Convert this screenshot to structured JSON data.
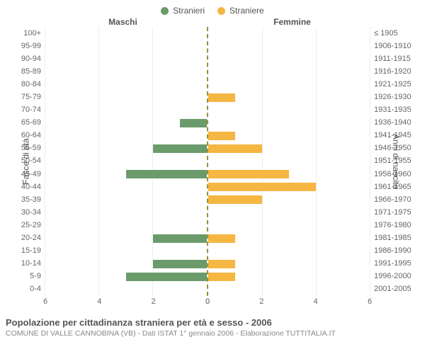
{
  "legend": {
    "male": {
      "label": "Stranieri",
      "color": "#6b9b6b"
    },
    "female": {
      "label": "Straniere",
      "color": "#f5b642"
    }
  },
  "headers": {
    "left": "Maschi",
    "right": "Femmine"
  },
  "y_titles": {
    "left": "Fasce di età",
    "right": "Anni di nascita"
  },
  "x_axis": {
    "max": 6,
    "ticks": [
      0,
      2,
      4,
      6
    ]
  },
  "grid_color": "#eeeeee",
  "center_line_color": "#9a8f3a",
  "bands": [
    {
      "age": "100+",
      "birth": "≤ 1905",
      "m": 0,
      "f": 0
    },
    {
      "age": "95-99",
      "birth": "1906-1910",
      "m": 0,
      "f": 0
    },
    {
      "age": "90-94",
      "birth": "1911-1915",
      "m": 0,
      "f": 0
    },
    {
      "age": "85-89",
      "birth": "1916-1920",
      "m": 0,
      "f": 0
    },
    {
      "age": "80-84",
      "birth": "1921-1925",
      "m": 0,
      "f": 0
    },
    {
      "age": "75-79",
      "birth": "1926-1930",
      "m": 0,
      "f": 1
    },
    {
      "age": "70-74",
      "birth": "1931-1935",
      "m": 0,
      "f": 0
    },
    {
      "age": "65-69",
      "birth": "1936-1940",
      "m": 1,
      "f": 0
    },
    {
      "age": "60-64",
      "birth": "1941-1945",
      "m": 0,
      "f": 1
    },
    {
      "age": "55-59",
      "birth": "1946-1950",
      "m": 2,
      "f": 2
    },
    {
      "age": "50-54",
      "birth": "1951-1955",
      "m": 0,
      "f": 0
    },
    {
      "age": "45-49",
      "birth": "1956-1960",
      "m": 3,
      "f": 3
    },
    {
      "age": "40-44",
      "birth": "1961-1965",
      "m": 0,
      "f": 4
    },
    {
      "age": "35-39",
      "birth": "1966-1970",
      "m": 0,
      "f": 2
    },
    {
      "age": "30-34",
      "birth": "1971-1975",
      "m": 0,
      "f": 0
    },
    {
      "age": "25-29",
      "birth": "1976-1980",
      "m": 0,
      "f": 0
    },
    {
      "age": "20-24",
      "birth": "1981-1985",
      "m": 2,
      "f": 1
    },
    {
      "age": "15-19",
      "birth": "1986-1990",
      "m": 0,
      "f": 0
    },
    {
      "age": "10-14",
      "birth": "1991-1995",
      "m": 2,
      "f": 1
    },
    {
      "age": "5-9",
      "birth": "1996-2000",
      "m": 3,
      "f": 1
    },
    {
      "age": "0-4",
      "birth": "2001-2005",
      "m": 0,
      "f": 0
    }
  ],
  "footer": {
    "title": "Popolazione per cittadinanza straniera per età e sesso - 2006",
    "subtitle": "COMUNE DI VALLE CANNOBINA (VB) - Dati ISTAT 1° gennaio 2006 - Elaborazione TUTTITALIA.IT"
  }
}
